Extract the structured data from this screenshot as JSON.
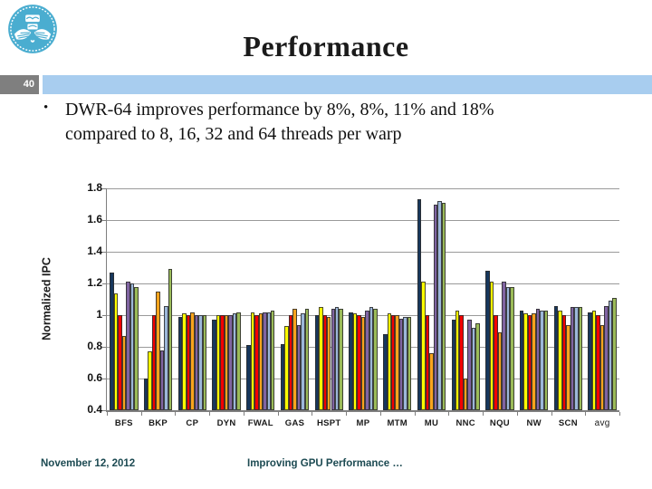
{
  "header": {
    "title": "Performance",
    "page_number": "40"
  },
  "body": {
    "bullet_line1": "DWR-64 improves performance by 8%, 8%, 11% and 18%",
    "bullet_line2": "compared to 8, 16, 32 and 64 threads per warp",
    "bullet_glyph": "•"
  },
  "footer": {
    "date": "November 12, 2012",
    "title": "Improving GPU Performance …"
  },
  "colors": {
    "accent_bar": "#a8cdef",
    "page_number_box": "#7f7f7f",
    "footer_text": "#1c4a52",
    "gridline": "#9a9a9a",
    "axis": "#7f7f7f"
  },
  "chart_data": {
    "type": "bar",
    "title": "",
    "xlabel": "",
    "ylabel": "Normalized IPC",
    "ylim": [
      0.4,
      1.8
    ],
    "ytick_step": 0.2,
    "grid": true,
    "legend": "none",
    "categories": [
      "BFS",
      "BKP",
      "CP",
      "DYN",
      "FWAL",
      "GAS",
      "HSPT",
      "MP",
      "MTM",
      "MU",
      "NNC",
      "NQU",
      "NW",
      "SCN",
      "avg"
    ],
    "series": [
      {
        "name": "dark-navy",
        "color": "#17375d",
        "values": [
          1.27,
          0.6,
          0.99,
          0.97,
          0.81,
          0.82,
          1.0,
          1.02,
          0.88,
          1.73,
          0.97,
          1.28,
          1.03,
          1.06,
          1.02
        ]
      },
      {
        "name": "yellow",
        "color": "#ffff00",
        "values": [
          1.14,
          0.77,
          1.01,
          1.0,
          1.02,
          0.93,
          1.05,
          1.01,
          1.01,
          1.21,
          1.03,
          1.21,
          1.01,
          1.03,
          1.03
        ]
      },
      {
        "name": "red",
        "color": "#f40000",
        "values": [
          1.0,
          1.0,
          1.0,
          1.0,
          1.0,
          1.0,
          1.0,
          1.0,
          1.0,
          1.0,
          1.0,
          1.0,
          1.0,
          1.0,
          1.0
        ]
      },
      {
        "name": "orange",
        "color": "#f9a41c",
        "values": [
          0.87,
          1.15,
          1.02,
          1.0,
          1.01,
          1.04,
          0.99,
          0.99,
          1.0,
          0.76,
          0.6,
          0.89,
          1.01,
          0.94,
          0.94
        ]
      },
      {
        "name": "purple",
        "color": "#8064a2",
        "values": [
          1.21,
          0.78,
          1.0,
          1.0,
          1.02,
          0.94,
          1.04,
          1.03,
          0.98,
          1.7,
          0.97,
          1.21,
          1.04,
          1.05,
          1.06
        ]
      },
      {
        "name": "light-blue",
        "color": "#9cb7d9",
        "values": [
          1.2,
          1.06,
          1.0,
          1.01,
          1.02,
          1.01,
          1.05,
          1.05,
          0.99,
          1.72,
          0.92,
          1.18,
          1.03,
          1.05,
          1.09
        ]
      },
      {
        "name": "green",
        "color": "#9bbb59",
        "values": [
          1.18,
          1.29,
          1.0,
          1.02,
          1.03,
          1.04,
          1.04,
          1.04,
          0.99,
          1.71,
          0.95,
          1.18,
          1.03,
          1.05,
          1.11
        ]
      }
    ]
  }
}
